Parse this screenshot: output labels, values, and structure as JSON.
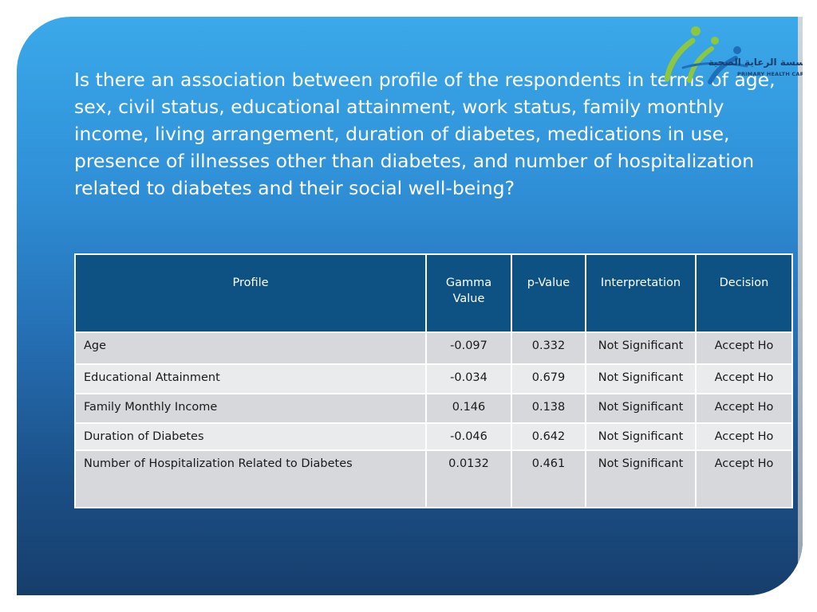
{
  "question": "Is there an association between profile of the respondents in terms of age, sex, civil status, educational attainment, work status, family monthly income, living arrangement, duration of diabetes, medications in use, presence of illnesses other than diabetes, and number of hospitalization related to diabetes and their social well-being?",
  "logo": {
    "arabic_text": "مؤسسة الرعاية الصحية",
    "english_text": "PRIMARY HEALTH CARE CORPORATION",
    "colors": {
      "figure_green": "#8dc63f",
      "figure_blue": "#1e6fb8",
      "text": "#1b3f6e"
    }
  },
  "table": {
    "headers": {
      "profile": "Profile",
      "gamma": "Gamma Value",
      "p_value": "p-Value",
      "interpretation": "Interpretation",
      "decision": "Decision"
    },
    "rows": [
      {
        "profile": "Age",
        "gamma": "-0.097",
        "p_value": "0.332",
        "interpretation": "Not Significant",
        "decision": "Accept Ho"
      },
      {
        "profile": "Educational Attainment",
        "gamma": "-0.034",
        "p_value": "0.679",
        "interpretation": "Not Significant",
        "decision": "Accept Ho"
      },
      {
        "profile": "Family Monthly Income",
        "gamma": "0.146",
        "p_value": "0.138",
        "interpretation": "Not Significant",
        "decision": "Accept Ho"
      },
      {
        "profile": "Duration of Diabetes",
        "gamma": "-0.046",
        "p_value": "0.642",
        "interpretation": "Not Significant",
        "decision": "Accept Ho"
      },
      {
        "profile": "Number of Hospitalization Related to Diabetes",
        "gamma": "0.0132",
        "p_value": "0.461",
        "interpretation": "Not Significant",
        "decision": "Accept Ho"
      }
    ]
  },
  "colors": {
    "header_bg": "#0d5283",
    "row_odd_bg": "#d6d8db",
    "row_even_bg": "#eaebec",
    "title_text": "#ffffff"
  }
}
